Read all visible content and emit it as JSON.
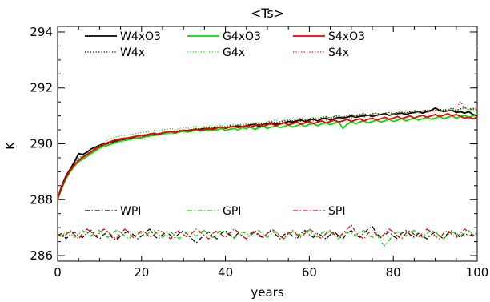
{
  "chart_data": {
    "type": "line",
    "title": "<Ts>",
    "xlabel": "years",
    "ylabel": "K",
    "xlim": [
      0,
      100
    ],
    "ylim": [
      285.8,
      294.2
    ],
    "xticks": [
      0,
      20,
      40,
      60,
      80,
      100
    ],
    "yticks": [
      286,
      288,
      290,
      292,
      294
    ],
    "x_minor_step": 5,
    "y_minor_step": 0.5,
    "grid": false,
    "legend_position": "top-left, inside plot, 3 columns",
    "series": [
      {
        "name": "W4xO3",
        "color": "#000000",
        "style": "solid",
        "x_start": 0,
        "values": [
          288.05,
          288.5,
          288.85,
          289.1,
          289.35,
          289.65,
          289.62,
          289.7,
          289.82,
          289.88,
          289.95,
          290.0,
          290.02,
          290.08,
          290.1,
          290.12,
          290.15,
          290.18,
          290.2,
          290.2,
          290.22,
          290.28,
          290.3,
          290.32,
          290.35,
          290.38,
          290.4,
          290.42,
          290.4,
          290.45,
          290.45,
          290.48,
          290.5,
          290.5,
          290.52,
          290.55,
          290.5,
          290.55,
          290.58,
          290.6,
          290.55,
          290.6,
          290.62,
          290.65,
          290.6,
          290.65,
          290.68,
          290.7,
          290.62,
          290.7,
          290.72,
          290.75,
          290.7,
          290.72,
          290.75,
          290.8,
          290.78,
          290.82,
          290.85,
          290.8,
          290.85,
          290.88,
          290.82,
          290.9,
          290.92,
          290.85,
          290.9,
          290.95,
          290.92,
          290.95,
          291.0,
          290.95,
          290.98,
          291.0,
          291.02,
          290.98,
          291.02,
          291.05,
          291.08,
          291.02,
          291.05,
          291.08,
          291.1,
          291.05,
          291.1,
          291.12,
          291.15,
          291.1,
          291.15,
          291.2,
          291.28,
          291.2,
          291.15,
          291.18,
          291.2,
          291.12,
          291.15,
          291.1,
          291.15,
          291.05,
          291.0
        ]
      },
      {
        "name": "W4x",
        "color": "#000000",
        "style": "dotted",
        "x_start": 0,
        "values": [
          288.0,
          288.45,
          288.8,
          289.05,
          289.3,
          289.5,
          289.55,
          289.6,
          289.7,
          289.8,
          289.9,
          289.95,
          290.0,
          290.05,
          290.1,
          290.12,
          290.15,
          290.18,
          290.2,
          290.22,
          290.25,
          290.28,
          290.3,
          290.32,
          290.35,
          290.38,
          290.4,
          290.42,
          290.45,
          290.48,
          290.5,
          290.48,
          290.5,
          290.55,
          290.52,
          290.55,
          290.58,
          290.6,
          290.55,
          290.6,
          290.62,
          290.65,
          290.62,
          290.68,
          290.7,
          290.65,
          290.72,
          290.75,
          290.7,
          290.72,
          290.78,
          290.8,
          290.75,
          290.8,
          290.82,
          290.85,
          290.8,
          290.88,
          290.9,
          290.85,
          290.9,
          290.92,
          290.88,
          290.95,
          290.98,
          290.92,
          290.98,
          291.0,
          290.95,
          291.02,
          291.05,
          291.0,
          291.05,
          291.08,
          291.02,
          291.08,
          291.1,
          291.05,
          291.1,
          291.12,
          291.08,
          291.12,
          291.15,
          291.1,
          291.15,
          291.2,
          291.15,
          291.18,
          291.22,
          291.15,
          291.2,
          291.25,
          291.18,
          291.22,
          291.28,
          291.2,
          291.25,
          291.3,
          291.22,
          291.25,
          291.2
        ]
      },
      {
        "name": "G4xO3",
        "color": "#00dd00",
        "style": "solid",
        "x_start": 0,
        "values": [
          288.0,
          288.4,
          288.75,
          289.0,
          289.2,
          289.35,
          289.45,
          289.55,
          289.65,
          289.75,
          289.85,
          289.9,
          289.95,
          290.0,
          290.05,
          290.1,
          290.12,
          290.15,
          290.18,
          290.2,
          290.22,
          290.25,
          290.28,
          290.3,
          290.32,
          290.35,
          290.38,
          290.4,
          290.38,
          290.42,
          290.45,
          290.42,
          290.45,
          290.48,
          290.45,
          290.5,
          290.48,
          290.52,
          290.5,
          290.55,
          290.48,
          290.52,
          290.55,
          290.5,
          290.58,
          290.55,
          290.6,
          290.52,
          290.58,
          290.62,
          290.55,
          290.6,
          290.65,
          290.58,
          290.62,
          290.68,
          290.6,
          290.65,
          290.7,
          290.62,
          290.7,
          290.72,
          290.65,
          290.72,
          290.75,
          290.68,
          290.75,
          290.78,
          290.55,
          290.7,
          290.8,
          290.72,
          290.78,
          290.82,
          290.75,
          290.8,
          290.85,
          290.78,
          290.82,
          290.88,
          290.8,
          290.85,
          290.9,
          290.82,
          290.88,
          290.92,
          290.85,
          290.9,
          290.95,
          290.88,
          290.92,
          290.98,
          290.9,
          290.95,
          291.0,
          290.92,
          290.98,
          291.02,
          290.95,
          291.0,
          291.05
        ]
      },
      {
        "name": "G4x",
        "color": "#00dd00",
        "style": "dotted",
        "x_start": 0,
        "values": [
          288.0,
          288.45,
          288.8,
          289.05,
          289.25,
          289.45,
          289.55,
          289.65,
          289.75,
          289.85,
          289.95,
          290.05,
          290.15,
          290.2,
          290.25,
          290.28,
          290.3,
          290.32,
          290.35,
          290.38,
          290.4,
          290.42,
          290.45,
          290.48,
          290.45,
          290.5,
          290.52,
          290.55,
          290.5,
          290.55,
          290.58,
          290.55,
          290.6,
          290.62,
          290.58,
          290.62,
          290.65,
          290.6,
          290.65,
          290.68,
          290.62,
          290.68,
          290.7,
          290.65,
          290.72,
          290.75,
          290.7,
          290.75,
          290.78,
          290.72,
          290.8,
          290.82,
          290.85,
          290.78,
          290.85,
          290.88,
          290.82,
          290.9,
          290.92,
          290.88,
          290.92,
          290.95,
          290.9,
          290.95,
          290.98,
          290.92,
          291.0,
          291.02,
          290.95,
          291.0,
          291.05,
          290.98,
          291.02,
          291.08,
          291.0,
          291.05,
          291.1,
          291.02,
          291.08,
          291.12,
          291.05,
          291.1,
          291.15,
          291.08,
          291.12,
          291.18,
          291.1,
          291.15,
          291.2,
          291.12,
          291.18,
          291.22,
          291.15,
          291.2,
          291.25,
          291.18,
          291.22,
          291.28,
          291.2,
          291.25,
          291.3
        ]
      },
      {
        "name": "S4xO3",
        "color": "#ee0000",
        "style": "solid",
        "x_start": 0,
        "values": [
          288.05,
          288.45,
          288.8,
          289.05,
          289.25,
          289.4,
          289.52,
          289.62,
          289.72,
          289.82,
          289.9,
          289.98,
          290.05,
          290.1,
          290.15,
          290.18,
          290.2,
          290.22,
          290.25,
          290.28,
          290.3,
          290.32,
          290.35,
          290.38,
          290.32,
          290.4,
          290.42,
          290.45,
          290.4,
          290.45,
          290.48,
          290.45,
          290.5,
          290.52,
          290.48,
          290.52,
          290.55,
          290.5,
          290.58,
          290.6,
          290.55,
          290.6,
          290.62,
          290.58,
          290.62,
          290.65,
          290.6,
          290.65,
          290.7,
          290.62,
          290.68,
          290.72,
          290.65,
          290.7,
          290.75,
          290.68,
          290.72,
          290.78,
          290.7,
          290.75,
          290.8,
          290.72,
          290.78,
          290.82,
          290.75,
          290.8,
          290.85,
          290.78,
          290.82,
          290.88,
          290.8,
          290.85,
          290.9,
          290.82,
          290.88,
          290.92,
          290.85,
          290.9,
          290.95,
          290.88,
          290.92,
          290.98,
          290.9,
          290.95,
          291.0,
          290.92,
          290.98,
          291.02,
          290.95,
          291.0,
          291.05,
          290.98,
          291.02,
          291.08,
          291.0,
          291.05,
          290.98,
          290.92,
          290.95,
          290.9,
          290.95
        ]
      },
      {
        "name": "S4x",
        "color": "#ee0000",
        "style": "dotted",
        "x_start": 0,
        "values": [
          288.0,
          288.42,
          288.78,
          289.02,
          289.22,
          289.4,
          289.5,
          289.6,
          289.7,
          289.8,
          289.88,
          289.95,
          290.0,
          290.05,
          290.1,
          290.15,
          290.18,
          290.2,
          290.22,
          290.25,
          290.28,
          290.3,
          290.32,
          290.35,
          290.38,
          290.4,
          290.42,
          290.45,
          290.42,
          290.48,
          290.5,
          290.48,
          290.52,
          290.55,
          290.5,
          290.55,
          290.58,
          290.55,
          290.6,
          290.62,
          290.58,
          290.62,
          290.65,
          290.6,
          290.68,
          290.7,
          290.65,
          290.7,
          290.72,
          290.68,
          290.75,
          290.78,
          290.72,
          290.78,
          290.8,
          290.75,
          290.82,
          290.85,
          290.8,
          290.85,
          290.88,
          290.82,
          290.88,
          290.92,
          290.85,
          290.92,
          290.95,
          290.9,
          290.95,
          290.98,
          290.92,
          291.0,
          291.02,
          290.95,
          291.02,
          291.05,
          291.0,
          291.05,
          291.08,
          291.02,
          291.08,
          291.12,
          291.05,
          291.1,
          291.15,
          291.08,
          291.15,
          291.18,
          291.1,
          291.18,
          291.22,
          291.15,
          291.22,
          291.25,
          291.18,
          291.25,
          291.5,
          291.3,
          291.25,
          291.28,
          291.2
        ]
      },
      {
        "name": "WPI",
        "color": "#000000",
        "style": "dashdot",
        "x_start": 0,
        "values": [
          286.7,
          286.8,
          286.6,
          286.75,
          286.85,
          286.7,
          286.65,
          286.8,
          286.9,
          286.7,
          286.6,
          286.75,
          286.85,
          286.65,
          286.55,
          286.7,
          286.8,
          286.9,
          286.75,
          286.6,
          286.7,
          286.85,
          286.95,
          286.7,
          286.6,
          286.75,
          286.85,
          286.7,
          286.65,
          286.8,
          286.9,
          286.75,
          286.6,
          286.45,
          286.6,
          286.75,
          286.85,
          286.7,
          286.6,
          286.8,
          286.9,
          286.75,
          286.65,
          286.8,
          286.7,
          286.6,
          286.75,
          286.85,
          286.7,
          286.65,
          286.8,
          286.9,
          286.75,
          286.6,
          286.75,
          286.85,
          286.7,
          286.6,
          286.8,
          286.9,
          286.75,
          286.65,
          286.8,
          286.7,
          286.6,
          286.75,
          286.85,
          286.7,
          286.6,
          286.8,
          286.9,
          286.75,
          286.65,
          286.8,
          286.95,
          287.05,
          286.8,
          286.65,
          286.75,
          286.85,
          286.7,
          286.6,
          286.8,
          286.9,
          286.75,
          286.65,
          286.8,
          286.7,
          286.6,
          286.75,
          286.85,
          286.7,
          286.6,
          286.8,
          286.9,
          286.75,
          286.65,
          286.8,
          286.7,
          286.75,
          286.8
        ]
      },
      {
        "name": "GPI",
        "color": "#00dd00",
        "style": "dashdot",
        "x_start": 0,
        "values": [
          286.75,
          286.7,
          286.85,
          286.8,
          286.65,
          286.75,
          286.9,
          286.8,
          286.7,
          286.85,
          286.9,
          286.75,
          286.65,
          286.8,
          286.9,
          286.85,
          286.7,
          286.6,
          286.75,
          286.85,
          286.8,
          286.7,
          286.85,
          286.9,
          286.75,
          286.65,
          286.8,
          286.85,
          286.7,
          286.6,
          286.75,
          286.85,
          286.8,
          286.7,
          286.85,
          286.9,
          286.75,
          286.65,
          286.8,
          286.9,
          286.85,
          286.7,
          286.6,
          286.75,
          286.85,
          286.8,
          286.7,
          286.85,
          286.9,
          286.75,
          286.65,
          286.8,
          286.85,
          286.7,
          286.6,
          286.75,
          286.85,
          286.8,
          286.7,
          286.85,
          286.9,
          286.75,
          286.65,
          286.8,
          286.9,
          286.85,
          286.7,
          286.6,
          286.75,
          286.85,
          286.8,
          286.7,
          286.85,
          286.9,
          286.75,
          286.65,
          286.8,
          286.5,
          286.35,
          286.55,
          286.75,
          286.85,
          286.8,
          286.7,
          286.85,
          286.9,
          286.75,
          286.65,
          286.8,
          286.9,
          286.85,
          286.7,
          286.6,
          286.75,
          286.85,
          286.8,
          286.7,
          286.85,
          286.9,
          286.75,
          286.8
        ]
      },
      {
        "name": "SPI",
        "color": "#ee0000",
        "style": "dashdot",
        "x_start": 0,
        "values": [
          286.8,
          286.65,
          286.75,
          286.9,
          286.75,
          286.6,
          286.8,
          286.95,
          286.85,
          286.7,
          286.8,
          286.95,
          286.85,
          286.7,
          286.6,
          286.8,
          286.95,
          286.8,
          286.65,
          286.75,
          286.9,
          286.8,
          286.65,
          286.75,
          286.9,
          286.85,
          286.7,
          286.6,
          286.8,
          286.9,
          286.75,
          286.65,
          286.8,
          286.95,
          286.85,
          286.7,
          286.6,
          286.8,
          286.9,
          286.75,
          286.65,
          286.8,
          286.95,
          286.85,
          286.7,
          286.6,
          286.8,
          286.9,
          286.75,
          286.65,
          286.8,
          286.95,
          286.85,
          286.7,
          286.6,
          286.8,
          286.9,
          286.75,
          286.65,
          286.8,
          286.95,
          286.85,
          286.7,
          286.6,
          286.8,
          286.9,
          286.75,
          286.65,
          286.8,
          286.95,
          287.1,
          286.85,
          286.7,
          286.6,
          286.8,
          286.9,
          286.75,
          286.65,
          286.8,
          286.95,
          286.85,
          286.7,
          286.6,
          286.8,
          286.9,
          286.75,
          286.65,
          286.8,
          286.95,
          286.85,
          286.7,
          286.6,
          286.8,
          286.9,
          286.75,
          286.65,
          286.8,
          286.95,
          286.85,
          286.7,
          286.8
        ]
      }
    ]
  }
}
